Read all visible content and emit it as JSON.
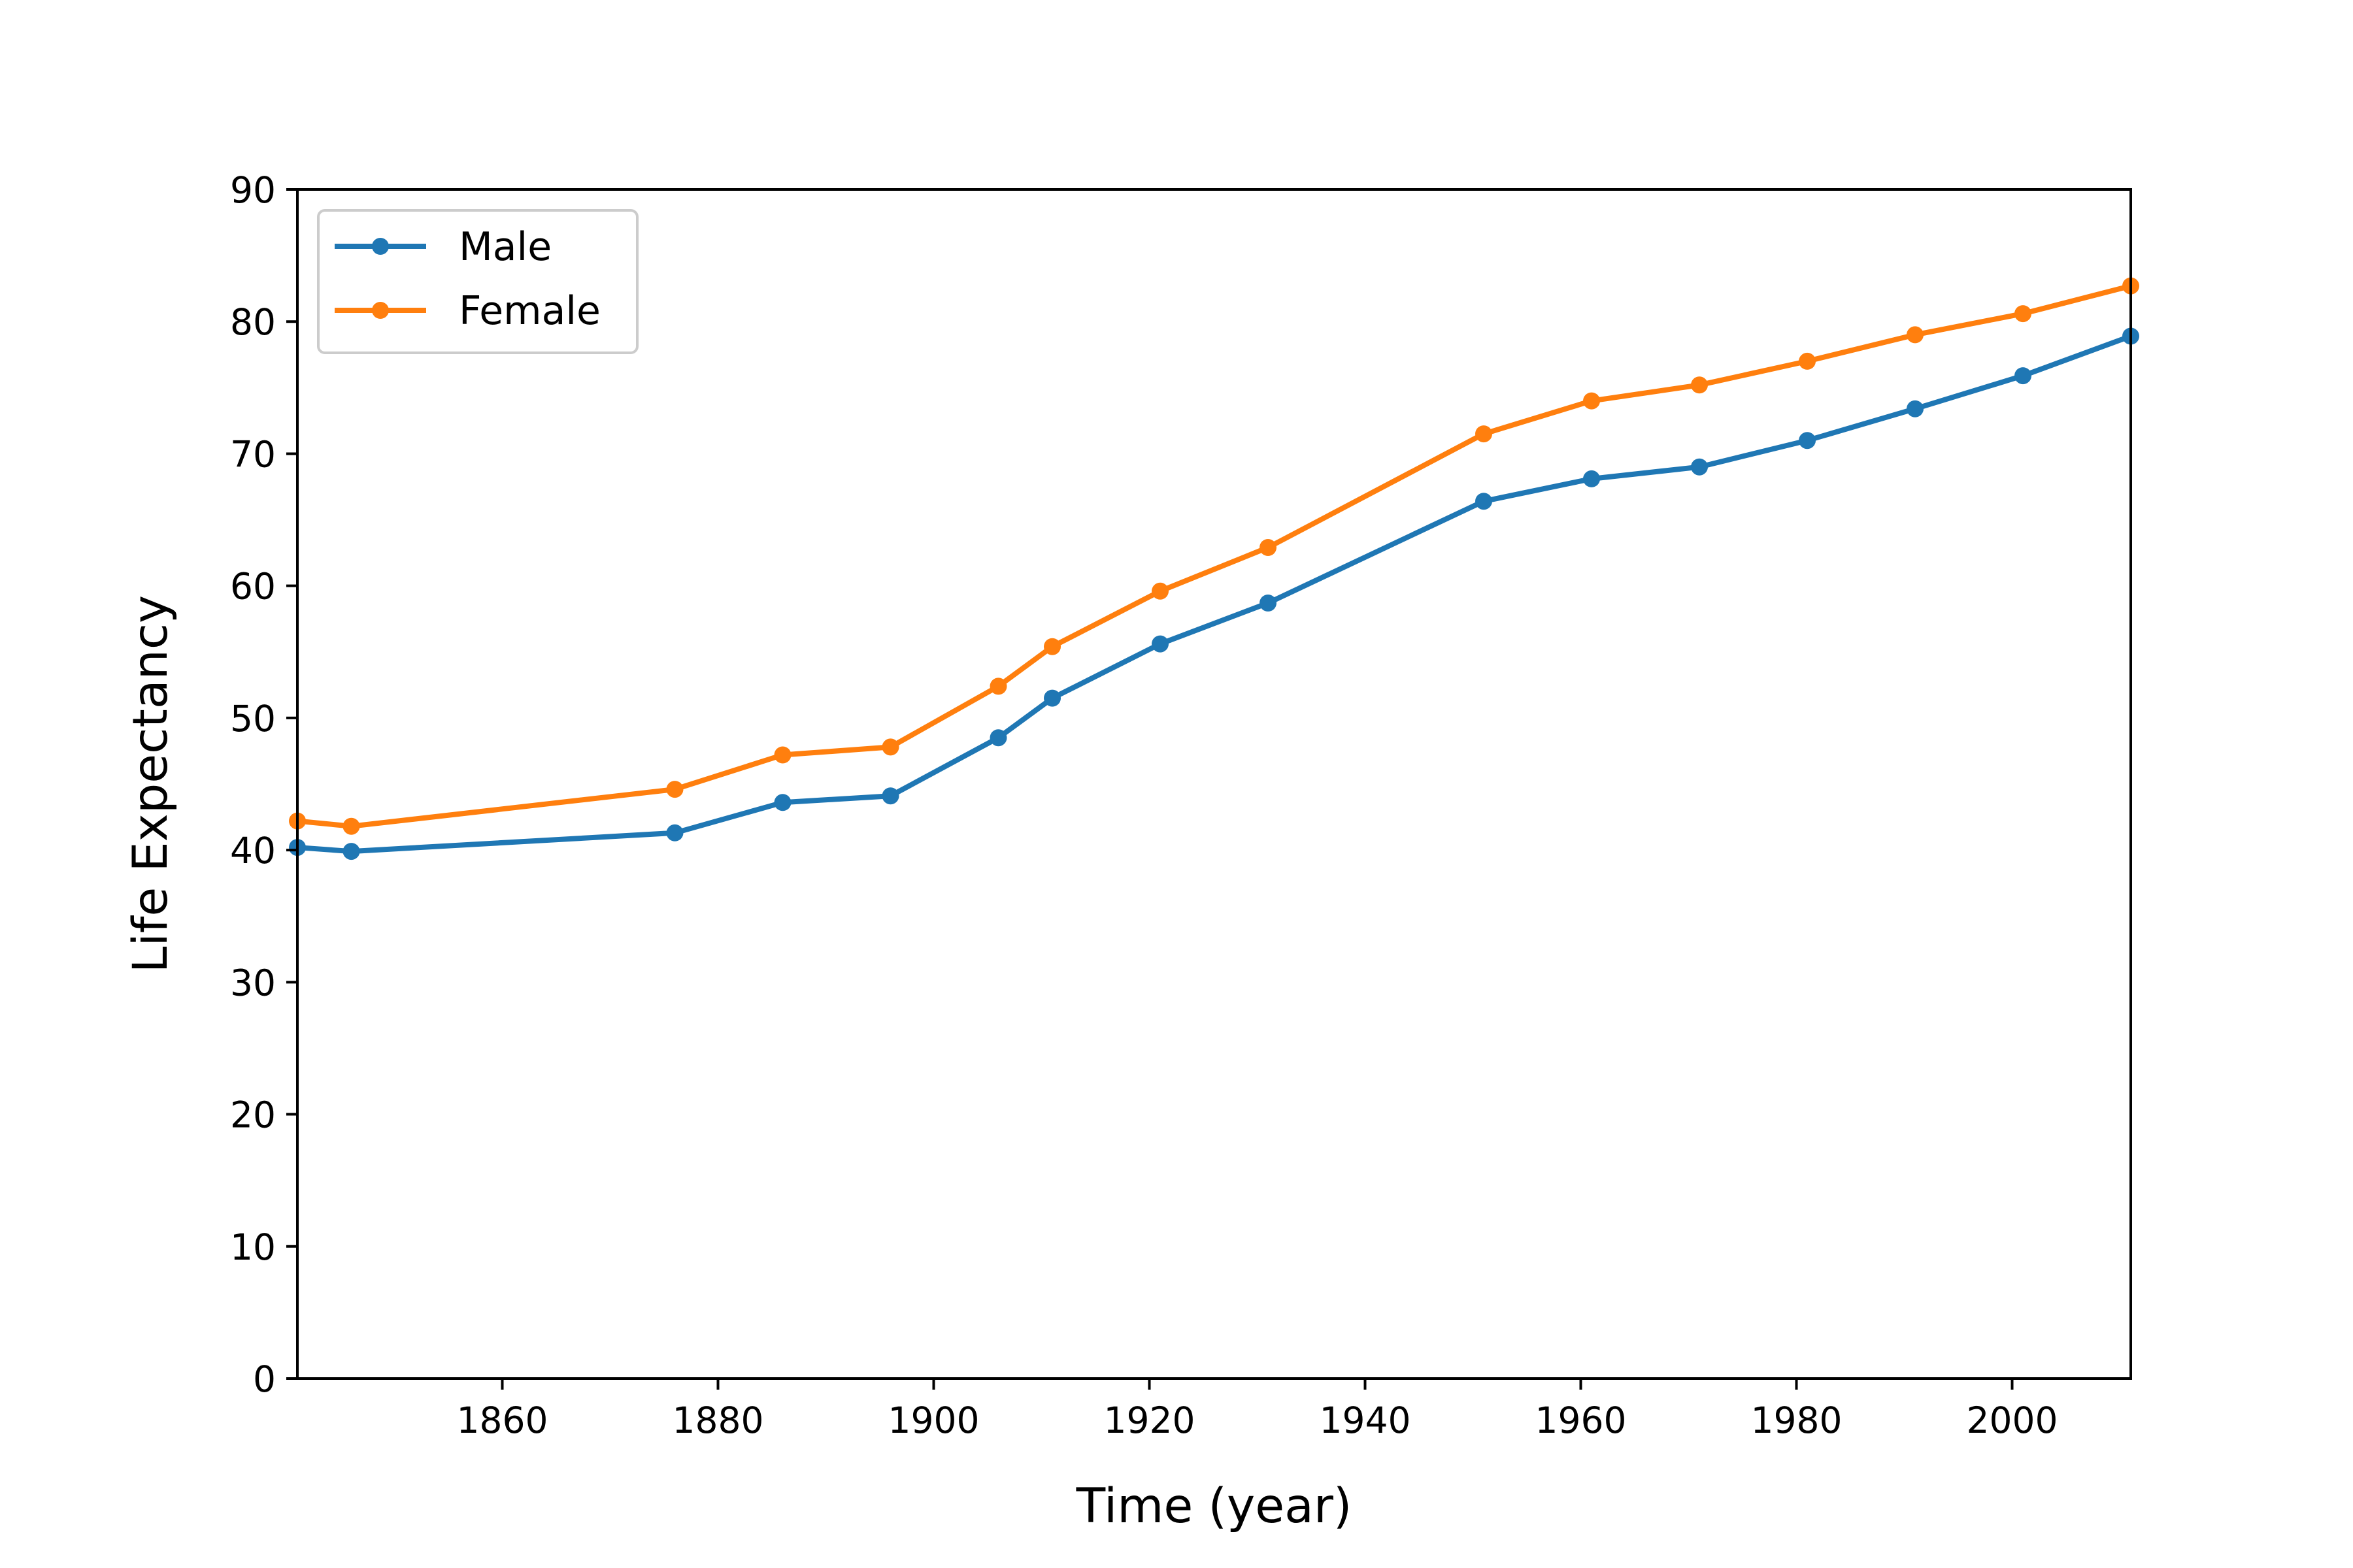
{
  "chart_data": {
    "type": "line",
    "xlabel": "Time (year)",
    "ylabel": "Life Expectancy",
    "xlim": [
      1841,
      2011
    ],
    "ylim": [
      0,
      90
    ],
    "xticks": [
      1860,
      1880,
      1900,
      1920,
      1940,
      1960,
      1980,
      2000
    ],
    "yticks": [
      0,
      10,
      20,
      30,
      40,
      50,
      60,
      70,
      80,
      90
    ],
    "grid": false,
    "legend_position": "top-left",
    "x": [
      1841,
      1846,
      1876,
      1886,
      1896,
      1906,
      1911,
      1921,
      1931,
      1951,
      1961,
      1971,
      1981,
      1991,
      2001,
      2011
    ],
    "series": [
      {
        "name": "Male",
        "color": "#1f77b4",
        "marker": "circle",
        "values": [
          40.2,
          39.9,
          41.3,
          43.6,
          44.1,
          48.5,
          51.5,
          55.6,
          58.7,
          66.4,
          68.1,
          69.0,
          71.0,
          73.4,
          75.9,
          78.9
        ]
      },
      {
        "name": "Female",
        "color": "#ff7f0e",
        "marker": "circle",
        "values": [
          42.2,
          41.8,
          44.6,
          47.2,
          47.8,
          52.4,
          55.4,
          59.6,
          62.9,
          71.5,
          74.0,
          75.2,
          77.0,
          79.0,
          80.6,
          82.7
        ]
      }
    ]
  }
}
